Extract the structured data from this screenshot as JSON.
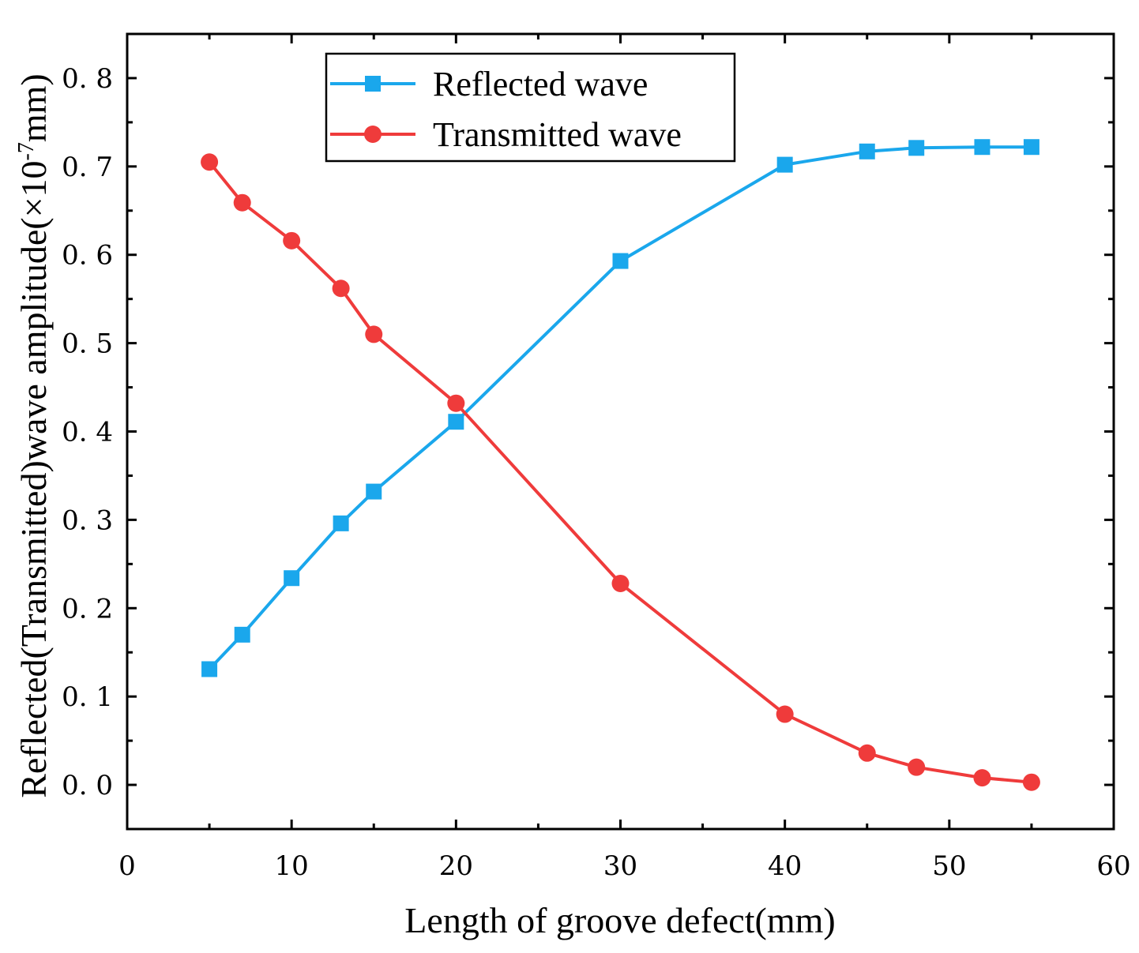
{
  "chart_data": {
    "type": "line",
    "xlabel": "Length of groove defect(mm)",
    "ylabel_main": "Reflected(Transmitted)wave amplitude(×10",
    "ylabel_exp": "-7",
    "ylabel_tail": "mm)",
    "xlim": [
      0,
      60
    ],
    "ylim": [
      -0.05,
      0.85
    ],
    "x_ticks": [
      0,
      10,
      20,
      30,
      40,
      50,
      60
    ],
    "x_tick_labels": [
      "0",
      "10",
      "20",
      "30",
      "40",
      "50",
      "60"
    ],
    "y_ticks": [
      0.0,
      0.1,
      0.2,
      0.3,
      0.4,
      0.5,
      0.6,
      0.7,
      0.8
    ],
    "y_tick_labels": [
      "0. 0",
      "0. 1",
      "0. 2",
      "0. 3",
      "0. 4",
      "0. 5",
      "0. 6",
      "0. 7",
      "0. 8"
    ],
    "grid": false,
    "legend_position": "top-center",
    "series": [
      {
        "name": "Reflected wave",
        "color": "#1aa7ec",
        "marker": "square",
        "x": [
          5,
          7,
          10,
          13,
          15,
          20,
          30,
          40,
          45,
          48,
          52,
          55
        ],
        "y": [
          0.131,
          0.17,
          0.234,
          0.296,
          0.332,
          0.411,
          0.593,
          0.702,
          0.717,
          0.721,
          0.722,
          0.722
        ]
      },
      {
        "name": "Transmitted wave",
        "color": "#ef3b3b",
        "marker": "circle",
        "x": [
          5,
          7,
          10,
          13,
          15,
          20,
          30,
          40,
          45,
          48,
          52,
          55
        ],
        "y": [
          0.705,
          0.659,
          0.616,
          0.562,
          0.51,
          0.432,
          0.228,
          0.08,
          0.036,
          0.02,
          0.008,
          0.003
        ]
      }
    ]
  }
}
